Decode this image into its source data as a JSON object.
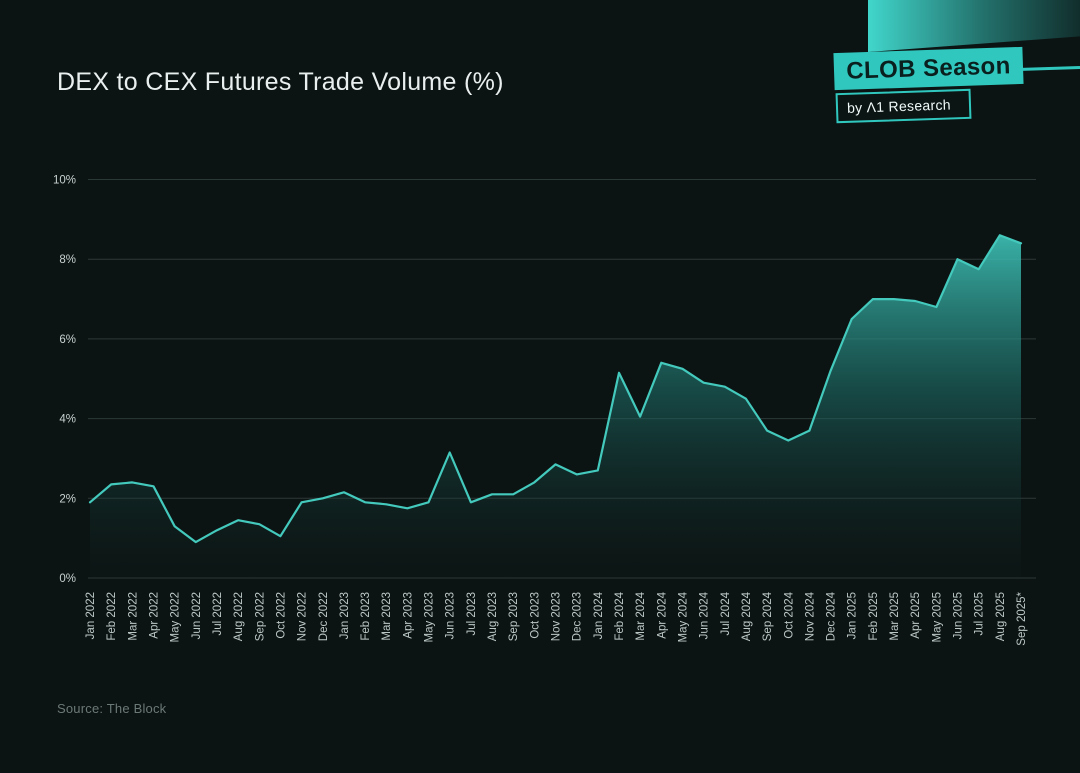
{
  "header": {
    "title": "DEX to CEX Futures Trade Volume (%)"
  },
  "badge": {
    "line1": "CLOB Season",
    "line2": "by Λ1 Research",
    "teal": "#30c8be"
  },
  "footer": {
    "source": "Source: The Block"
  },
  "chart_data": {
    "type": "area",
    "title": "DEX to CEX Futures Trade Volume (%)",
    "categories": [
      "Jan 2022",
      "Feb 2022",
      "Mar 2022",
      "Apr 2022",
      "May 2022",
      "Jun 2022",
      "Jul 2022",
      "Aug 2022",
      "Sep 2022",
      "Oct 2022",
      "Nov 2022",
      "Dec 2022",
      "Jan 2023",
      "Feb 2023",
      "Mar 2023",
      "Apr 2023",
      "May 2023",
      "Jun 2023",
      "Jul 2023",
      "Aug 2023",
      "Sep 2023",
      "Oct 2023",
      "Nov 2023",
      "Dec 2023",
      "Jan 2024",
      "Feb 2024",
      "Mar 2024",
      "Apr 2024",
      "May 2024",
      "Jun 2024",
      "Jul 2024",
      "Aug 2024",
      "Sep 2024",
      "Oct 2024",
      "Nov 2024",
      "Dec 2024",
      "Jan 2025",
      "Feb 2025",
      "Mar 2025",
      "Apr 2025",
      "May 2025",
      "Jun 2025",
      "Jul 2025",
      "Aug 2025",
      "Sep 2025*"
    ],
    "values": [
      1.9,
      2.35,
      2.4,
      2.3,
      1.3,
      0.9,
      1.2,
      1.45,
      1.35,
      1.05,
      1.9,
      2.0,
      2.15,
      1.9,
      1.85,
      1.75,
      1.9,
      3.15,
      1.9,
      2.1,
      2.1,
      2.4,
      2.85,
      2.6,
      2.7,
      5.15,
      4.05,
      5.4,
      5.25,
      4.9,
      4.8,
      4.5,
      3.7,
      3.45,
      3.7,
      5.2,
      6.5,
      7.0,
      7.0,
      6.95,
      6.8,
      8.0,
      7.75,
      8.6,
      8.4
    ],
    "ylim": [
      0,
      10
    ],
    "ytick_values": [
      0,
      2,
      4,
      6,
      8,
      10
    ],
    "ytick_labels": [
      "0%",
      "2%",
      "4%",
      "6%",
      "8%",
      "10%"
    ],
    "grid": true,
    "legend": "none",
    "line_color": "#44c9bd",
    "fill_top_color": "#3dc0b5",
    "fill_bottom_color": "#0f2423",
    "grid_color": "#2c3837",
    "background_color": "#0c1413"
  }
}
